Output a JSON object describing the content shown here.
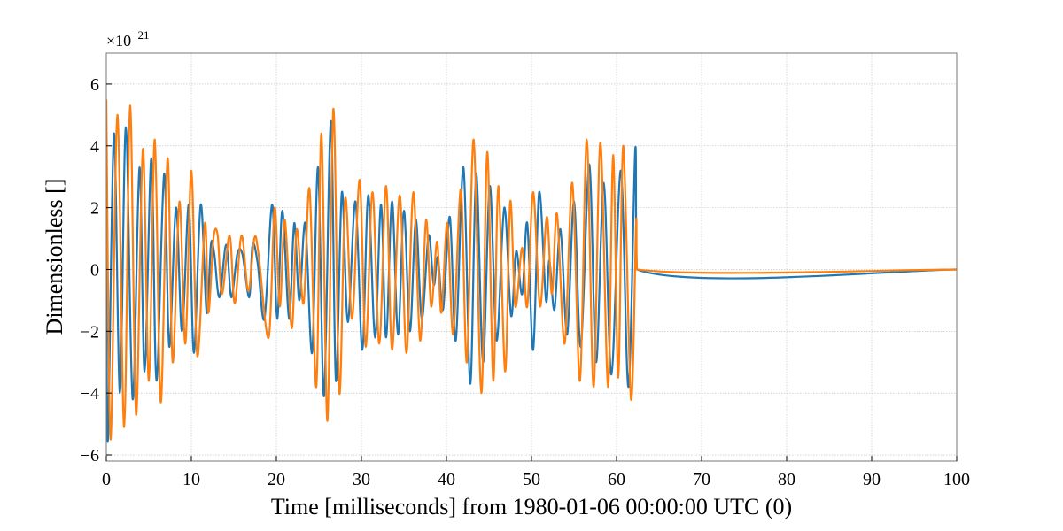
{
  "chart_data": {
    "type": "line",
    "xlabel": "Time [milliseconds] from 1980-01-06 00:00:00 UTC (0)",
    "ylabel": "Dimensionless []",
    "y_scale_base": "×10",
    "y_scale_exponent": "−21",
    "xlim": [
      0,
      100
    ],
    "ylim": [
      -6.2,
      7.0
    ],
    "xticks": [
      0,
      10,
      20,
      30,
      40,
      50,
      60,
      70,
      80,
      90,
      100
    ],
    "yticks": [
      {
        "value": -6,
        "label": "−6"
      },
      {
        "value": -4,
        "label": "−4"
      },
      {
        "value": -2,
        "label": "−2"
      },
      0,
      2,
      4,
      6
    ],
    "grid": true,
    "series": [
      {
        "color": "#1f77b4",
        "x": [
          0,
          0.2,
          0.9,
          1.6,
          2.3,
          3.1,
          3.9,
          4.5,
          5.3,
          5.9,
          6.8,
          7.4,
          8.2,
          8.9,
          9.7,
          10.3,
          11.1,
          11.8,
          12.3,
          12.7,
          13.3,
          14.1,
          14.7,
          15.4,
          16.0,
          16.8,
          17.2,
          17.8,
          18.6,
          19.5,
          20.1,
          20.7,
          21.5,
          22.1,
          22.7,
          23.4,
          24.2,
          24.9,
          25.6,
          26.4,
          27.0,
          27.7,
          28.4,
          29.3,
          30.1,
          30.8,
          31.6,
          32.3,
          32.9,
          33.6,
          34.3,
          35.0,
          35.7,
          36.4,
          37.1,
          37.9,
          38.5,
          39.0,
          39.6,
          40.4,
          41.1,
          42.0,
          42.8,
          43.5,
          44.3,
          45.1,
          45.9,
          46.8,
          47.6,
          48.2,
          48.9,
          49.5,
          50.2,
          50.9,
          51.7,
          52.1,
          52.7,
          53.4,
          54.2,
          55.0,
          55.8,
          56.8,
          57.6,
          58.5,
          59.4,
          60.5,
          61.4,
          62.2,
          62.4,
          100
        ],
        "values": [
          0.5,
          -5.5,
          4.4,
          -4.0,
          4.6,
          -4.2,
          3.3,
          -3.3,
          3.6,
          -3.6,
          3.1,
          -2.5,
          2.0,
          -2.0,
          2.1,
          -2.7,
          2.1,
          -1.4,
          0.8,
          0.5,
          -0.9,
          0.8,
          -0.9,
          0.5,
          0.5,
          -0.9,
          0.8,
          0.2,
          -1.6,
          2.1,
          -1.6,
          1.9,
          -1.6,
          1.5,
          -1.0,
          1.5,
          -2.7,
          3.3,
          -4.1,
          4.8,
          -3.6,
          2.5,
          -1.7,
          2.2,
          -2.6,
          2.4,
          -2.2,
          2.1,
          -2.2,
          2.2,
          -2.1,
          1.9,
          -2.0,
          1.6,
          -1.6,
          1.1,
          -0.5,
          0.4,
          -1.3,
          1.7,
          -2.3,
          3.3,
          -3.7,
          3.1,
          -3.0,
          2.7,
          -2.3,
          2.0,
          -1.5,
          0.6,
          -0.8,
          1.5,
          -2.6,
          2.5,
          -1.0,
          0.3,
          -1.3,
          1.3,
          -2.1,
          2.2,
          -2.5,
          3.4,
          -3.0,
          2.8,
          -3.4,
          3.2,
          -3.8,
          3.9,
          0,
          0
        ]
      },
      {
        "color": "#ff7f0e",
        "x": [
          0,
          0.5,
          1.3,
          2.1,
          2.8,
          3.5,
          4.3,
          5.0,
          5.7,
          6.4,
          7.2,
          7.8,
          8.6,
          9.3,
          10.0,
          10.7,
          11.6,
          12.0,
          12.6,
          13.1,
          13.6,
          14.5,
          15.1,
          15.9,
          16.7,
          17.4,
          17.9,
          19.1,
          19.8,
          20.4,
          21.0,
          21.8,
          22.4,
          23.2,
          23.9,
          24.7,
          25.3,
          26.0,
          26.7,
          27.4,
          28.1,
          28.9,
          29.8,
          30.5,
          31.3,
          32.1,
          32.9,
          33.6,
          34.5,
          35.3,
          36.1,
          36.9,
          37.6,
          38.2,
          38.9,
          39.4,
          40.1,
          40.8,
          41.7,
          42.4,
          43.2,
          44.1,
          44.8,
          45.5,
          46.1,
          46.9,
          47.5,
          48.1,
          48.9,
          49.5,
          50.2,
          51.0,
          51.8,
          52.4,
          53.0,
          53.9,
          54.8,
          55.7,
          56.5,
          57.3,
          58.1,
          59.0,
          59.6,
          60.2,
          60.8,
          61.7,
          62.3,
          62.4,
          100
        ],
        "values": [
          5.5,
          -5.5,
          5.0,
          -5.1,
          5.3,
          -4.7,
          3.9,
          -3.6,
          4.2,
          -4.3,
          3.6,
          -3.0,
          2.2,
          -2.4,
          3.2,
          -2.8,
          1.5,
          -1.4,
          1.0,
          1.1,
          -0.8,
          1.1,
          -1.1,
          1.1,
          -0.7,
          1.0,
          0.5,
          -2.2,
          2.0,
          -1.2,
          1.6,
          -1.9,
          1.3,
          -1.1,
          2.6,
          -3.8,
          4.4,
          -4.9,
          5.2,
          -4.0,
          2.3,
          -1.6,
          2.9,
          -2.5,
          2.5,
          -2.4,
          2.7,
          -2.6,
          2.4,
          -2.7,
          2.5,
          -2.3,
          1.6,
          -1.2,
          0.9,
          -1.4,
          1.5,
          -2.1,
          2.6,
          -3.0,
          4.2,
          -4.0,
          3.8,
          -3.6,
          2.7,
          -3.3,
          2.2,
          -1.2,
          0.7,
          -1.2,
          2.5,
          -1.2,
          1.7,
          -0.8,
          1.8,
          -2.4,
          2.8,
          -3.6,
          4.2,
          -3.8,
          4.1,
          -3.8,
          3.7,
          -3.5,
          4.0,
          -4.2,
          1.5,
          0,
          0
        ]
      }
    ]
  }
}
